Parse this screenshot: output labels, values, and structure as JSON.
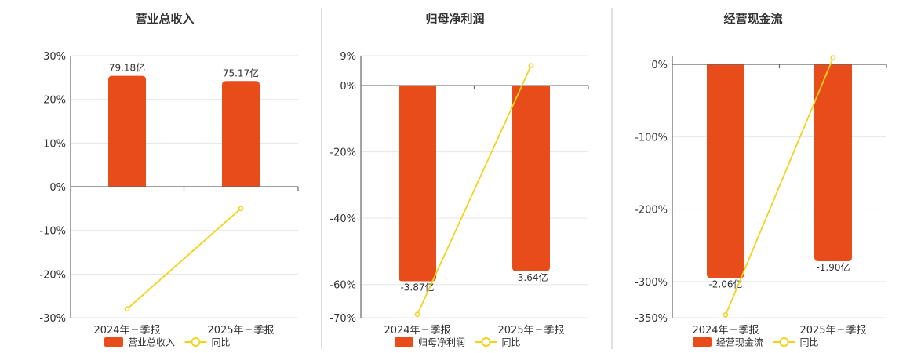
{
  "colors": {
    "bar": "#e84c1a",
    "line": "#f2d21b"
  },
  "legend_line_label": "同比",
  "chart_data": [
    {
      "type": "bar",
      "title": "营业总收入",
      "categories": [
        "2024年三季报",
        "2025年三季报"
      ],
      "series": [
        {
          "name": "营业总收入",
          "type": "bar",
          "values": [
            25.4,
            24.2
          ],
          "labels": [
            "79.18亿",
            "75.17亿"
          ]
        },
        {
          "name": "同比",
          "type": "line",
          "values": [
            -28.0,
            -5.0
          ]
        }
      ],
      "ylim": [
        -30,
        30
      ],
      "yticks": [
        30,
        20,
        10,
        0,
        -10,
        -20,
        -30
      ],
      "ytick_labels": [
        "30%",
        "20%",
        "10%",
        "0%",
        "-10%",
        "-20%",
        "-30%"
      ],
      "grid": true,
      "legend": "bottom"
    },
    {
      "type": "bar",
      "title": "归母净利润",
      "categories": [
        "2024年三季报",
        "2025年三季报"
      ],
      "series": [
        {
          "name": "归母净利润",
          "type": "bar",
          "values": [
            -59.0,
            -56.0
          ],
          "labels": [
            "-3.87亿",
            "-3.64亿"
          ]
        },
        {
          "name": "同比",
          "type": "line",
          "values": [
            -69.0,
            6.0
          ]
        }
      ],
      "ylim": [
        -70,
        9
      ],
      "yticks": [
        9,
        0,
        -20,
        -40,
        -60,
        -70
      ],
      "ytick_labels": [
        "9%",
        "0%",
        "-20%",
        "-40%",
        "-60%",
        "-70%"
      ],
      "grid": true,
      "legend": "bottom"
    },
    {
      "type": "bar",
      "title": "经营现金流",
      "categories": [
        "2024年三季报",
        "2025年三季报"
      ],
      "series": [
        {
          "name": "经营现金流",
          "type": "bar",
          "values": [
            -295.0,
            -272.0
          ],
          "labels": [
            "-2.06亿",
            "-1.90亿"
          ]
        },
        {
          "name": "同比",
          "type": "line",
          "values": [
            -346.0,
            9.0
          ]
        }
      ],
      "ylim": [
        -350,
        12
      ],
      "yticks": [
        0,
        -100,
        -200,
        -300,
        -350
      ],
      "ytick_labels": [
        "0%",
        "-100%",
        "-200%",
        "-300%",
        "-350%"
      ],
      "grid": true,
      "legend": "bottom"
    }
  ]
}
